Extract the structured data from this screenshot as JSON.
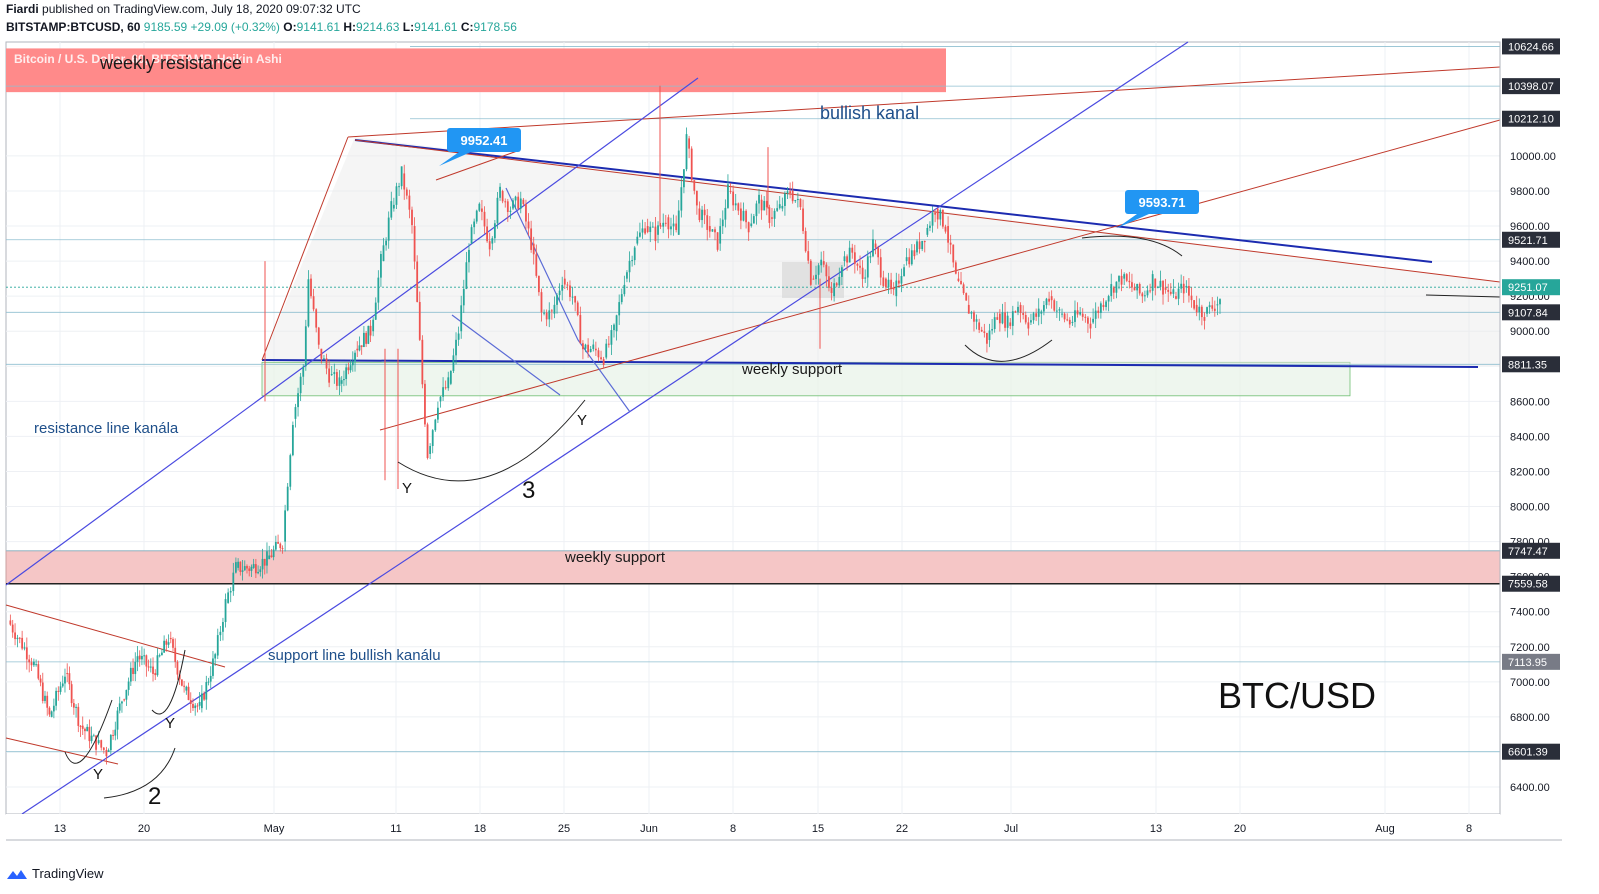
{
  "header": {
    "author": "Fiardi",
    "published_text": "published on TradingView.com, July 18, 2020 09:07:32 UTC",
    "symbol": "BITSTAMP:BTCUSD, 60",
    "last": "9185.59",
    "change": "+29.09 (+0.32%)",
    "open_label": "O:",
    "open": "9141.61",
    "high_label": "H:",
    "high": "9214.63",
    "low_label": "L:",
    "low": "9141.61",
    "close_label": "C:",
    "close": "9178.56",
    "series_caption": "Bitcoin / U.S. Dollar, 60, BITSTAMP, Heikin Ashi"
  },
  "footer": {
    "brand": "TradingView"
  },
  "colors": {
    "up": "#26a69a",
    "down": "#ef5350",
    "resistance_zone": "#ff8a8a",
    "support_zone": "#f5c6c6",
    "channel": "#4a4ae0",
    "trend_red": "#c0392b",
    "triangle_blue": "#1c2bb0",
    "callout": "#2196f3"
  },
  "chart_data": {
    "type": "candlestick",
    "title": "BTC/USD",
    "ylim": [
      6200,
      10750
    ],
    "y_ticks": [
      6400,
      6600,
      6800,
      7000,
      7200,
      7400,
      7600,
      7800,
      8000,
      8200,
      8400,
      8600,
      8800,
      9000,
      9200,
      9400,
      9600,
      9800,
      10000
    ],
    "y_tick_labels": [
      "6400.00",
      "6600.00",
      "6800.00",
      "7000.00",
      "7200.00",
      "7400.00",
      "7600.00",
      "7800.00",
      "8000.00",
      "8200.00",
      "8400.00",
      "8600.00",
      "8800.00",
      "9000.00",
      "9200.00",
      "9400.00",
      "9600.00",
      "9800.00",
      "10000.00"
    ],
    "x_ticks": [
      "13",
      "20",
      "May",
      "11",
      "18",
      "25",
      "Jun",
      "8",
      "15",
      "22",
      "Jul",
      "13",
      "20",
      "Aug",
      "8"
    ],
    "price_levels": [
      {
        "value": 10624.66,
        "label": "10624.66",
        "style": "dark"
      },
      {
        "value": 10398.07,
        "label": "10398.07",
        "style": "dark"
      },
      {
        "value": 10212.1,
        "label": "10212.10",
        "style": "dark"
      },
      {
        "value": 9521.71,
        "label": "9521.71",
        "style": "dark"
      },
      {
        "value": 9251.07,
        "label": "9251.07",
        "style": "current"
      },
      {
        "value": 9107.84,
        "label": "9107.84",
        "style": "dark"
      },
      {
        "value": 8811.35,
        "label": "8811.35",
        "style": "dark"
      },
      {
        "value": 7747.47,
        "label": "7747.47",
        "style": "dark"
      },
      {
        "value": 7559.58,
        "label": "7559.58",
        "style": "dark"
      },
      {
        "value": 7113.95,
        "label": "7113.95",
        "style": "grey"
      },
      {
        "value": 6601.39,
        "label": "6601.39",
        "style": "dark"
      }
    ],
    "zones": [
      {
        "name": "weekly resistance",
        "low": 10398.07,
        "high": 10624.66
      },
      {
        "name": "weekly support",
        "low": 7559.58,
        "high": 7747.47
      },
      {
        "name": "weekly support",
        "low": 8700,
        "high": 8811.35
      }
    ],
    "callouts": [
      "9952.41",
      "9593.71"
    ],
    "annotations": [
      "weekly resistance",
      "bullish kanal",
      "resistance line kanála",
      "weekly support",
      "weekly support",
      "support line bullish kanálu",
      "Y",
      "Y",
      "Y",
      "Y",
      "2",
      "3"
    ],
    "price_path": [
      [
        0,
        7350
      ],
      [
        5,
        7100
      ],
      [
        8,
        6800
      ],
      [
        11,
        7050
      ],
      [
        14,
        6750
      ],
      [
        17,
        6650
      ],
      [
        19,
        6600
      ],
      [
        22,
        6900
      ],
      [
        25,
        7150
      ],
      [
        28,
        7050
      ],
      [
        31,
        7250
      ],
      [
        34,
        6950
      ],
      [
        37,
        6850
      ],
      [
        40,
        7150
      ],
      [
        42,
        7450
      ],
      [
        44,
        7650
      ],
      [
        47,
        7650
      ],
      [
        50,
        7700
      ],
      [
        53,
        7800
      ],
      [
        55,
        8500
      ],
      [
        57,
        8800
      ],
      [
        58,
        9300
      ],
      [
        60,
        8900
      ],
      [
        62,
        8750
      ],
      [
        64,
        8700
      ],
      [
        67,
        8900
      ],
      [
        70,
        9000
      ],
      [
        72,
        9400
      ],
      [
        74,
        9700
      ],
      [
        76,
        9900
      ],
      [
        78,
        9600
      ],
      [
        80,
        8700
      ],
      [
        81,
        8300
      ],
      [
        83,
        8600
      ],
      [
        85,
        8700
      ],
      [
        87,
        9000
      ],
      [
        89,
        9500
      ],
      [
        91,
        9700
      ],
      [
        93,
        9500
      ],
      [
        95,
        9800
      ],
      [
        97,
        9700
      ],
      [
        99,
        9750
      ],
      [
        101,
        9500
      ],
      [
        103,
        9100
      ],
      [
        105,
        9100
      ],
      [
        107,
        9300
      ],
      [
        109,
        9200
      ],
      [
        111,
        8900
      ],
      [
        113,
        8900
      ],
      [
        115,
        8850
      ],
      [
        117,
        9000
      ],
      [
        119,
        9300
      ],
      [
        121,
        9500
      ],
      [
        123,
        9600
      ],
      [
        125,
        9550
      ],
      [
        127,
        9650
      ],
      [
        129,
        9550
      ],
      [
        131,
        10100
      ],
      [
        133,
        9700
      ],
      [
        135,
        9600
      ],
      [
        137,
        9500
      ],
      [
        139,
        9800
      ],
      [
        141,
        9700
      ],
      [
        143,
        9600
      ],
      [
        145,
        9750
      ],
      [
        147,
        9650
      ],
      [
        149,
        9700
      ],
      [
        151,
        9800
      ],
      [
        153,
        9700
      ],
      [
        155,
        9300
      ],
      [
        157,
        9400
      ],
      [
        159,
        9200
      ],
      [
        161,
        9400
      ],
      [
        163,
        9450
      ],
      [
        165,
        9300
      ],
      [
        167,
        9500
      ],
      [
        169,
        9300
      ],
      [
        171,
        9200
      ],
      [
        173,
        9400
      ],
      [
        175,
        9450
      ],
      [
        177,
        9550
      ],
      [
        179,
        9700
      ],
      [
        181,
        9600
      ],
      [
        183,
        9300
      ],
      [
        185,
        9150
      ],
      [
        187,
        9050
      ],
      [
        189,
        8950
      ],
      [
        191,
        9100
      ],
      [
        193,
        9050
      ],
      [
        195,
        9150
      ],
      [
        197,
        9050
      ],
      [
        199,
        9100
      ],
      [
        201,
        9200
      ],
      [
        203,
        9100
      ],
      [
        205,
        9050
      ],
      [
        207,
        9100
      ],
      [
        209,
        9050
      ],
      [
        211,
        9150
      ],
      [
        213,
        9250
      ],
      [
        215,
        9300
      ],
      [
        217,
        9250
      ],
      [
        219,
        9200
      ],
      [
        221,
        9300
      ],
      [
        223,
        9250
      ],
      [
        225,
        9200
      ],
      [
        227,
        9250
      ],
      [
        229,
        9150
      ],
      [
        231,
        9100
      ],
      [
        233,
        9150
      ],
      [
        234,
        9185
      ]
    ]
  }
}
